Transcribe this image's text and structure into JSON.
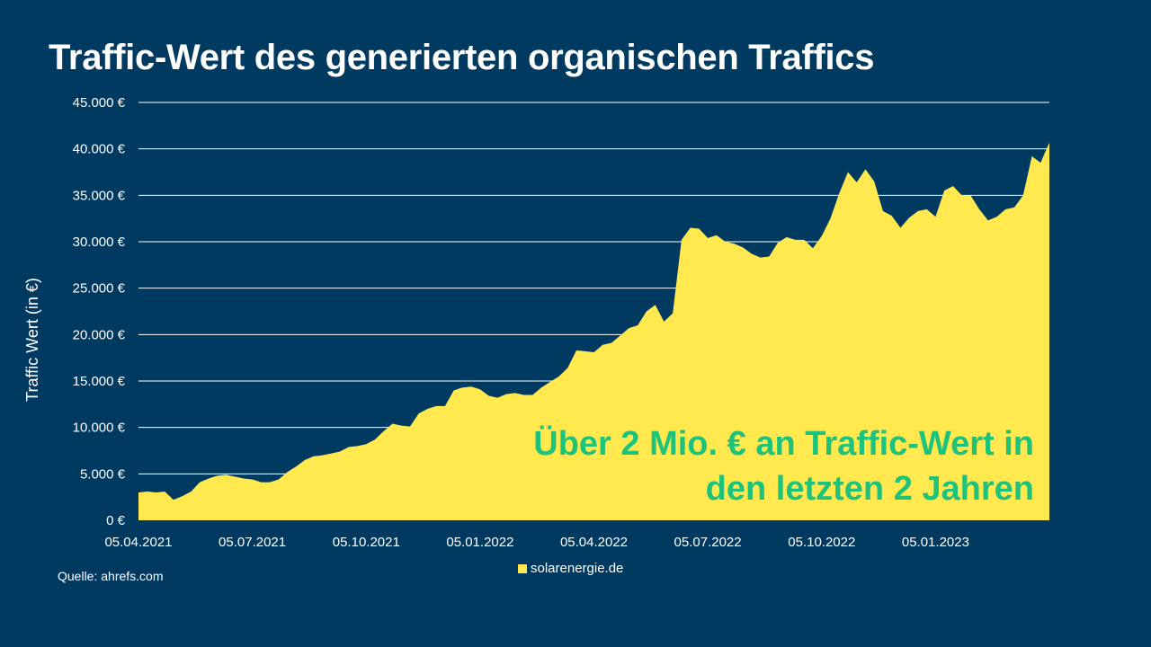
{
  "title": "Traffic-Wert des generierten organischen Traffics",
  "source_text": "Quelle: ahrefs.com",
  "colors": {
    "background": "#003a60",
    "area": "#ffe94f",
    "annotation": "#1ec27a",
    "text": "#ffffff",
    "grid": "#ffffff"
  },
  "chart_data": {
    "type": "area",
    "ylabel": "Traffic Wert (in €)",
    "ylim": [
      0,
      45000
    ],
    "y_ticks": [
      0,
      5000,
      10000,
      15000,
      20000,
      25000,
      30000,
      35000,
      40000,
      45000
    ],
    "y_tick_labels": [
      "0 €",
      "5.000 €",
      "10.000 €",
      "15.000 €",
      "20.000 €",
      "25.000 €",
      "30.000 €",
      "35.000 €",
      "40.000 €",
      "45.000 €"
    ],
    "x_tick_labels": [
      "05.04.2021",
      "05.07.2021",
      "05.10.2021",
      "05.01.2022",
      "05.04.2022",
      "05.07.2022",
      "05.10.2022",
      "05.01.2023"
    ],
    "grid": "horizontal",
    "legend": "bottom",
    "series": [
      {
        "name": "solarenergie.de",
        "values": [
          3000,
          3100,
          3000,
          3100,
          2200,
          2600,
          3100,
          4100,
          4500,
          4800,
          4900,
          4700,
          4500,
          4400,
          4100,
          4100,
          4400,
          5200,
          5800,
          6500,
          6900,
          7000,
          7200,
          7400,
          7900,
          8000,
          8200,
          8700,
          9600,
          10400,
          10200,
          10100,
          11500,
          12000,
          12300,
          12300,
          14000,
          14300,
          14400,
          14100,
          13400,
          13200,
          13600,
          13700,
          13500,
          13500,
          14300,
          14900,
          15500,
          16400,
          18300,
          18200,
          18100,
          18900,
          19100,
          19900,
          20700,
          21000,
          22500,
          23200,
          21400,
          22300,
          30200,
          31500,
          31400,
          30400,
          30700,
          30000,
          29800,
          29400,
          28700,
          28300,
          28400,
          29900,
          30500,
          30200,
          30200,
          29300,
          30600,
          32500,
          35200,
          37500,
          36400,
          37800,
          36500,
          33300,
          32800,
          31500,
          32600,
          33300,
          33500,
          32700,
          35500,
          36000,
          35000,
          35000,
          33500,
          32300,
          32700,
          33500,
          33700,
          35000,
          39200,
          38500,
          40700
        ]
      }
    ],
    "annotation_lines": [
      "Über 2 Mio. € an Traffic-Wert in",
      "den letzten 2 Jahren"
    ]
  }
}
